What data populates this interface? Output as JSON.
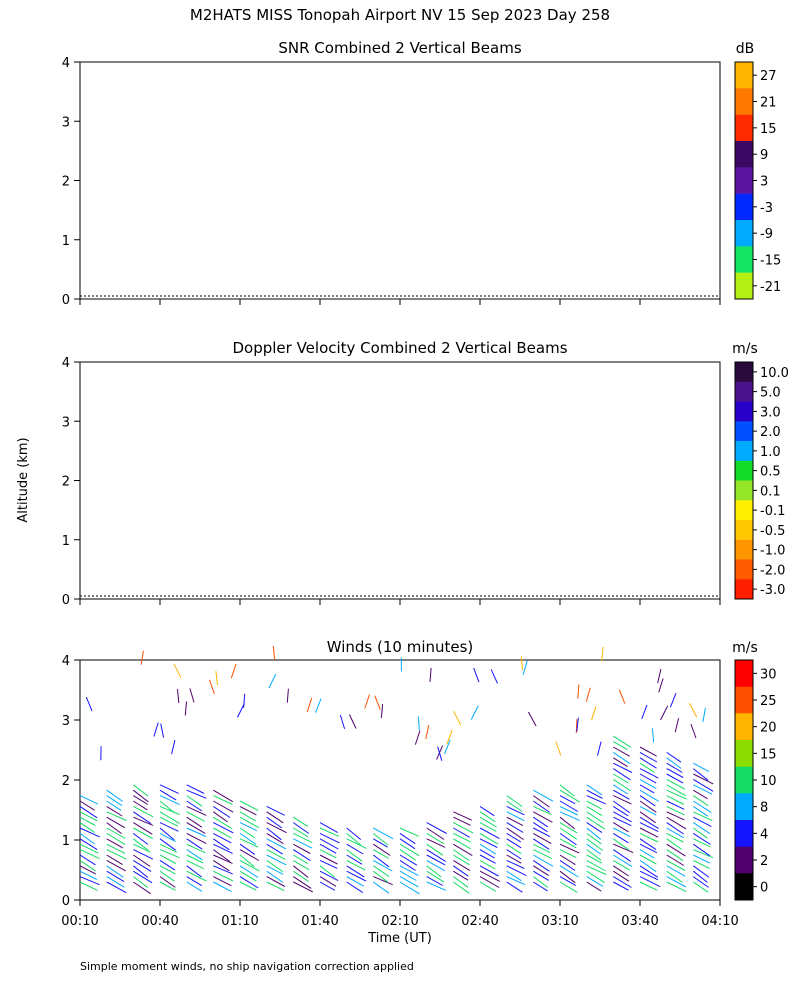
{
  "page_title": "M2HATS MISS Tonopah Airport NV  15 Sep 2023 Day 258",
  "y_axis_label": "Altitude (km)",
  "x_axis_label": "Time (UT)",
  "footnote": "Simple moment winds, no ship navigation correction applied",
  "chart_data": [
    {
      "type": "heatmap",
      "title": "SNR Combined 2 Vertical Beams",
      "ylim": [
        0,
        4
      ],
      "yticks": [
        "0",
        "1",
        "2",
        "3",
        "4"
      ],
      "colorbar_unit": "dB",
      "colorbar_labels": [
        "27",
        "21",
        "15",
        "9",
        "3",
        "-3",
        "-9",
        "-15",
        "-21"
      ],
      "colors": [
        "#ffb400",
        "#ff7800",
        "#ff2a00",
        "#3c0a64",
        "#5a14a0",
        "#0028ff",
        "#00aaff",
        "#14e664",
        "#b4f014"
      ]
    },
    {
      "type": "heatmap",
      "title": "Doppler Velocity Combined 2 Vertical Beams",
      "ylim": [
        0,
        4
      ],
      "yticks": [
        "0",
        "1",
        "2",
        "3",
        "4"
      ],
      "colorbar_unit": "m/s",
      "colorbar_labels": [
        "10.0",
        "5.0",
        "3.0",
        "2.0",
        "1.0",
        "0.5",
        "0.1",
        "-0.1",
        "-0.5",
        "-1.0",
        "-2.0",
        "-3.0"
      ],
      "colors": [
        "#2a0a3c",
        "#4b148c",
        "#2800c8",
        "#0050ff",
        "#00aaff",
        "#14dc28",
        "#96e628",
        "#fff000",
        "#ffc800",
        "#ff9600",
        "#ff5a00",
        "#ff1e00"
      ]
    },
    {
      "type": "wind-barbs",
      "title": "Winds (10 minutes)",
      "ylim": [
        0,
        4
      ],
      "yticks": [
        "0",
        "1",
        "2",
        "3",
        "4"
      ],
      "colorbar_unit": "m/s",
      "colorbar_labels": [
        "30",
        "25",
        "20",
        "15",
        "10",
        "8",
        "4",
        "2",
        "0"
      ],
      "colors": [
        "#ff0000",
        "#ff5000",
        "#ffb400",
        "#8cdc00",
        "#14dc64",
        "#00aaff",
        "#1414ff",
        "#50006e",
        "#000000"
      ],
      "x_ticks": [
        "00:10",
        "00:40",
        "01:10",
        "01:40",
        "02:10",
        "02:40",
        "03:10",
        "03:40",
        "04:10"
      ]
    }
  ]
}
